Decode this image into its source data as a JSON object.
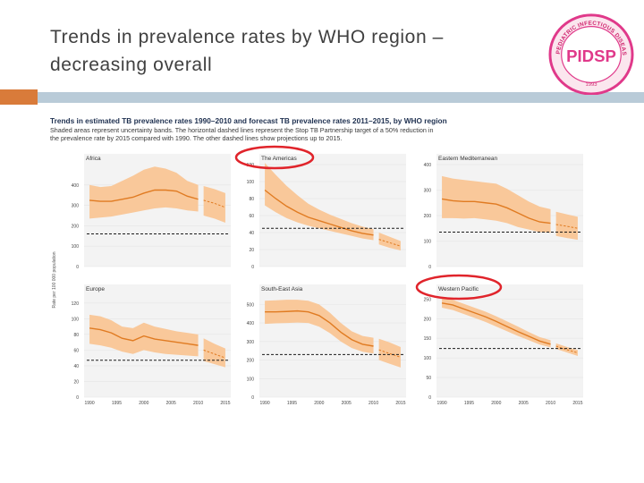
{
  "slide": {
    "title_line1": "Trends in prevalence rates by WHO region –",
    "title_line2": "decreasing overall"
  },
  "logo": {
    "top_text": "PEDIATRIC INFECTIOUS DISEASE SOCIETY OF THE PHILIPPINES",
    "monogram": "PIDSP",
    "year": "1993"
  },
  "colors": {
    "band": "#f9c89a",
    "line": "#e07b22",
    "target": "#1a1a1a",
    "highlight": "#e0242b",
    "accent": "#d97b3a",
    "title_bar": "#b9cbd8"
  },
  "figure": {
    "title": "Trends in estimated TB prevalence rates 1990–2010 and forecast TB prevalence rates 2011–2015, by WHO region",
    "caption_line1": "Shaded areas represent uncertainty bands. The horizontal dashed lines represent the Stop TB Partnership target of a 50% reduction in",
    "caption_line2": "the prevalence rate by 2015 compared with 1990. The other dashed lines show projections up to 2015.",
    "ylabel": "Rate per 100 000 population",
    "highlighted_panels": [
      "The Americas",
      "Western Pacific"
    ]
  },
  "chart_data": [
    {
      "type": "area",
      "title": "Africa",
      "ylim": [
        0,
        500
      ],
      "yticks": [
        0,
        100,
        200,
        300,
        400
      ],
      "x": [
        1990,
        1992,
        1994,
        1996,
        1998,
        2000,
        2002,
        2004,
        2006,
        2008,
        2010
      ],
      "values": [
        325,
        320,
        320,
        330,
        340,
        360,
        375,
        375,
        370,
        345,
        330
      ],
      "lower": [
        235,
        240,
        245,
        255,
        265,
        275,
        285,
        290,
        285,
        275,
        270
      ],
      "upper": [
        400,
        390,
        395,
        420,
        445,
        475,
        490,
        480,
        460,
        420,
        400
      ],
      "forecast": {
        "x": [
          2011,
          2013,
          2015
        ],
        "values": [
          325,
          310,
          290
        ],
        "lower": [
          250,
          235,
          215
        ],
        "upper": [
          395,
          380,
          360
        ]
      },
      "target": 160,
      "xlabels": []
    },
    {
      "type": "area",
      "title": "The Americas",
      "ylim": [
        0,
        120
      ],
      "yticks": [
        0,
        20,
        40,
        60,
        80,
        100,
        120
      ],
      "x": [
        1990,
        1992,
        1994,
        1996,
        1998,
        2000,
        2002,
        2004,
        2006,
        2008,
        2010
      ],
      "values": [
        90,
        80,
        71,
        64,
        58,
        54,
        50,
        46,
        42,
        39,
        37
      ],
      "lower": [
        72,
        64,
        57,
        52,
        48,
        45,
        42,
        39,
        36,
        33,
        31
      ],
      "upper": [
        122,
        108,
        95,
        84,
        74,
        67,
        61,
        56,
        51,
        47,
        44
      ],
      "forecast": {
        "x": [
          2011,
          2013,
          2015
        ],
        "values": [
          32,
          28,
          24
        ],
        "lower": [
          26,
          22,
          19
        ],
        "upper": [
          40,
          35,
          30
        ]
      },
      "target": 45,
      "xlabels": []
    },
    {
      "type": "area",
      "title": "Eastern Mediterranean",
      "ylim": [
        0,
        400
      ],
      "yticks": [
        0,
        100,
        200,
        300,
        400
      ],
      "x": [
        1990,
        1992,
        1994,
        1996,
        1998,
        2000,
        2002,
        2004,
        2006,
        2008,
        2010
      ],
      "values": [
        265,
        258,
        255,
        255,
        250,
        245,
        230,
        210,
        190,
        175,
        170
      ],
      "lower": [
        190,
        190,
        188,
        190,
        185,
        180,
        170,
        155,
        145,
        135,
        132
      ],
      "upper": [
        355,
        345,
        340,
        335,
        330,
        325,
        305,
        280,
        255,
        235,
        225
      ],
      "forecast": {
        "x": [
          2011,
          2013,
          2015
        ],
        "values": [
          165,
          158,
          150
        ],
        "lower": [
          120,
          112,
          105
        ],
        "upper": [
          215,
          205,
          195
        ]
      },
      "target": 135,
      "xlabels": []
    },
    {
      "type": "area",
      "title": "Europe",
      "ylim": [
        0,
        130
      ],
      "yticks": [
        0,
        20,
        40,
        60,
        80,
        100,
        120
      ],
      "x": [
        1990,
        1992,
        1994,
        1996,
        1998,
        2000,
        2002,
        2004,
        2006,
        2008,
        2010
      ],
      "values": [
        88,
        86,
        82,
        75,
        72,
        78,
        74,
        72,
        70,
        68,
        66
      ],
      "lower": [
        68,
        66,
        63,
        58,
        55,
        60,
        57,
        55,
        54,
        53,
        52
      ],
      "upper": [
        105,
        103,
        98,
        90,
        88,
        95,
        90,
        87,
        84,
        82,
        80
      ],
      "forecast": {
        "x": [
          2011,
          2013,
          2015
        ],
        "values": [
          60,
          55,
          50
        ],
        "lower": [
          46,
          42,
          38
        ],
        "upper": [
          75,
          68,
          62
        ]
      },
      "target": 47,
      "xlabels": [
        "1990",
        "1995",
        "2000",
        "2005",
        "2010",
        "2015"
      ]
    },
    {
      "type": "area",
      "title": "South-East Asia",
      "ylim": [
        0,
        550
      ],
      "yticks": [
        0,
        100,
        200,
        300,
        400,
        500
      ],
      "x": [
        1990,
        1992,
        1994,
        1996,
        1998,
        2000,
        2002,
        2004,
        2006,
        2008,
        2010
      ],
      "values": [
        460,
        460,
        462,
        465,
        460,
        440,
        400,
        350,
        310,
        285,
        275
      ],
      "lower": [
        395,
        398,
        400,
        402,
        400,
        380,
        345,
        300,
        265,
        245,
        235
      ],
      "upper": [
        520,
        522,
        525,
        525,
        520,
        500,
        455,
        400,
        355,
        330,
        320
      ],
      "forecast": {
        "x": [
          2011,
          2013,
          2015
        ],
        "values": [
          255,
          235,
          215
        ],
        "lower": [
          200,
          180,
          160
        ],
        "upper": [
          315,
          295,
          270
        ]
      },
      "target": 230,
      "xlabels": [
        "1990",
        "1995",
        "2000",
        "2005",
        "2010",
        "2015"
      ]
    },
    {
      "type": "area",
      "title": "Western Pacific",
      "ylim": [
        0,
        260
      ],
      "yticks": [
        0,
        50,
        100,
        150,
        200,
        250
      ],
      "x": [
        1990,
        1992,
        1994,
        1996,
        1998,
        2000,
        2002,
        2004,
        2006,
        2008,
        2010
      ],
      "values": [
        240,
        235,
        225,
        215,
        205,
        193,
        180,
        167,
        155,
        143,
        135
      ],
      "lower": [
        228,
        222,
        212,
        202,
        192,
        180,
        168,
        156,
        145,
        134,
        127
      ],
      "upper": [
        255,
        248,
        238,
        228,
        218,
        206,
        193,
        180,
        166,
        153,
        145
      ],
      "forecast": {
        "x": [
          2011,
          2013,
          2015
        ],
        "values": [
          130,
          121,
          113
        ],
        "lower": [
          123,
          114,
          105
        ],
        "upper": [
          137,
          128,
          120
        ]
      },
      "target": 124,
      "xlabels": [
        "1990",
        "1995",
        "2000",
        "2005",
        "2010",
        "2015"
      ]
    }
  ]
}
